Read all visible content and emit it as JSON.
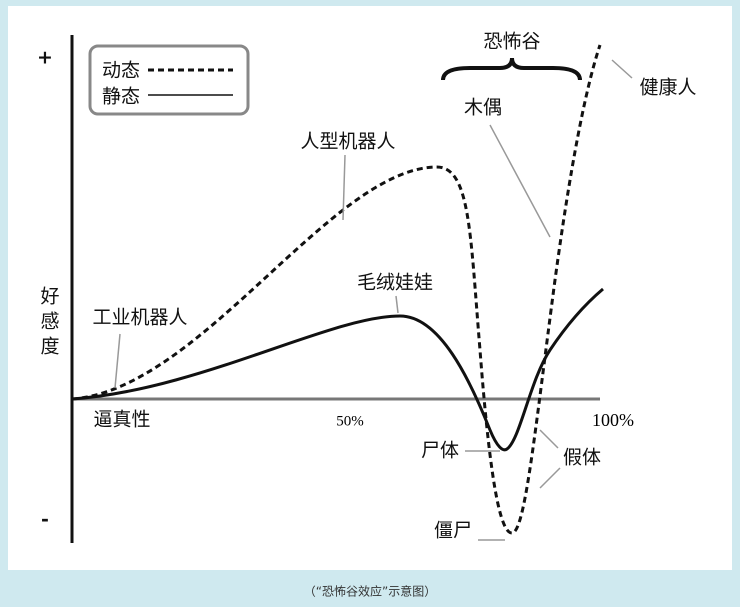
{
  "legend": {
    "items": [
      {
        "label": "动态"
      },
      {
        "label": "静态"
      }
    ]
  },
  "axis": {
    "y_label_lines": [
      "好",
      "感",
      "度"
    ],
    "y_top": "+",
    "y_bottom": "-",
    "x_label": "逼真性",
    "x_mid": "50%",
    "x_end": "100%"
  },
  "annotations": {
    "valley": "恐怖谷",
    "healthy": "健康人",
    "puppet": "木偶",
    "humanoid": "人型机器人",
    "plush": "毛绒娃娃",
    "industrial": "工业机器人",
    "corpse": "尸体",
    "prosthetic": "假体",
    "zombie": "僵尸"
  },
  "caption": "（“恐怖谷效应”示意图）"
}
